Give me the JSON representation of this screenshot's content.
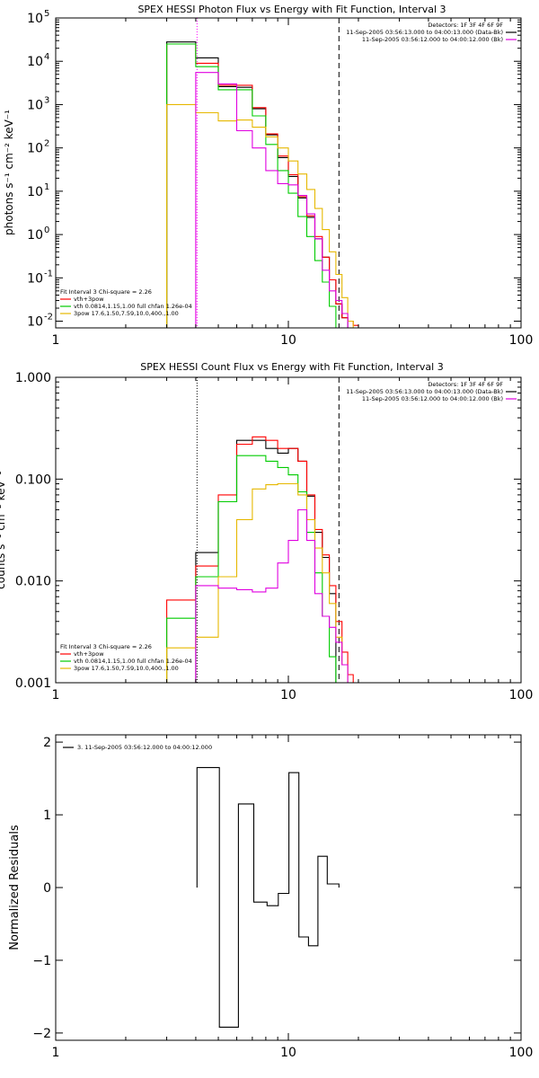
{
  "chart_data": [
    {
      "type": "line",
      "title": "SPEX HESSI Photon Flux vs Energy with Fit Function, Interval 3",
      "ylabel": "photons s⁻¹ cm⁻² keV⁻¹",
      "xlabel": "",
      "x_scale": "log",
      "y_scale": "log",
      "xlim": [
        1,
        100
      ],
      "ylim": [
        0.007,
        100000
      ],
      "x_ticks": [
        {
          "v": 1,
          "label": "1"
        },
        {
          "v": 10,
          "label": "10"
        },
        {
          "v": 100,
          "label": "100"
        }
      ],
      "y_ticks": [
        {
          "v": 0.01,
          "base": "10",
          "exp": "-2"
        },
        {
          "v": 0.1,
          "base": "10",
          "exp": "-1"
        },
        {
          "v": 1,
          "base": "10",
          "exp": "0"
        },
        {
          "v": 10,
          "base": "10",
          "exp": "1"
        },
        {
          "v": 100,
          "base": "10",
          "exp": "2"
        },
        {
          "v": 1000,
          "base": "10",
          "exp": "3"
        },
        {
          "v": 10000,
          "base": "10",
          "exp": "4"
        },
        {
          "v": 100000,
          "base": "10",
          "exp": "5"
        }
      ],
      "vlines": [
        {
          "x": 4.05,
          "style": "dotted",
          "color": "#ff00ff"
        },
        {
          "x": 16.5,
          "style": "dashed",
          "color": "#000000"
        }
      ],
      "info_lines": [
        "Detectors: 1F 3F 4F 6F 9F",
        "11-Sep-2005 03:56:13.000 to 04:00:13.000 (Data-Bk)",
        "11-Sep-2005 03:56:12.000 to 04:00:12.000 (Bk)"
      ],
      "fit_lines": [
        "Fit Interval 3   Chi-square = 2.26",
        "vth+3pow",
        "vth 0.0814,1.15,1.00  full chfan 1.26e-04",
        "3pow 17.6,1.50,7.59,10.0,400.,1.00"
      ],
      "edges": [
        3,
        4,
        5,
        6,
        7,
        8,
        9,
        10,
        11,
        12,
        13,
        14,
        15,
        16,
        17,
        18,
        19,
        20
      ],
      "series": [
        {
          "name": "Data-Bk",
          "color": "#000000",
          "values": [
            28000,
            12000,
            2600,
            2500,
            800,
            200,
            60,
            22,
            7,
            2.5,
            0.8,
            0.3,
            0.09,
            0.025,
            0.012,
            null,
            null
          ]
        },
        {
          "name": "vth+3pow",
          "color": "#ff0000",
          "values": [
            25000,
            9000,
            2800,
            2800,
            850,
            210,
            65,
            24,
            7.5,
            2.7,
            0.9,
            0.3,
            0.09,
            0.025,
            0.012,
            0.01,
            0.008
          ]
        },
        {
          "name": "vth",
          "color": "#00cc00",
          "values": [
            25000,
            7500,
            2200,
            2200,
            550,
            120,
            30,
            9,
            2.6,
            0.9,
            0.25,
            0.08,
            0.022,
            null,
            null,
            null,
            null
          ]
        },
        {
          "name": "3pow",
          "color": "#e6b800",
          "values": [
            1000,
            650,
            420,
            440,
            300,
            180,
            100,
            50,
            25,
            11,
            4,
            1.3,
            0.4,
            0.12,
            0.035,
            0.01,
            null
          ]
        },
        {
          "name": "Bk",
          "color": "#e000e0",
          "values": [
            null,
            5500,
            3000,
            250,
            100,
            30,
            15,
            14,
            8,
            3,
            0.8,
            0.15,
            0.05,
            0.03,
            0.015,
            null,
            null
          ]
        }
      ]
    },
    {
      "type": "line",
      "title": "SPEX HESSI Count Flux vs Energy with Fit Function, Interval 3",
      "ylabel": "counts s⁻¹ cm⁻² keV⁻¹",
      "xlabel": "",
      "x_scale": "log",
      "y_scale": "log",
      "xlim": [
        1,
        100
      ],
      "ylim": [
        0.001,
        1.0
      ],
      "x_ticks": [
        {
          "v": 1,
          "label": "1"
        },
        {
          "v": 10,
          "label": "10"
        },
        {
          "v": 100,
          "label": "100"
        }
      ],
      "y_ticks": [
        {
          "v": 0.001,
          "label": "0.001"
        },
        {
          "v": 0.01,
          "label": "0.010"
        },
        {
          "v": 0.1,
          "label": "0.100"
        },
        {
          "v": 1,
          "label": "1.000"
        }
      ],
      "vlines": [
        {
          "x": 4.05,
          "style": "dotted",
          "color": "#000000"
        },
        {
          "x": 16.5,
          "style": "dashed",
          "color": "#000000"
        }
      ],
      "info_lines": [
        "Detectors: 1F 3F 4F 6F 9F",
        "11-Sep-2005 03:56:13.000 to 04:00:13.000 (Data-Bk)",
        "11-Sep-2005 03:56:12.000 to 04:00:12.000 (Bk)"
      ],
      "fit_lines": [
        "Fit Interval 3   Chi-square = 2.26",
        "vth+3pow",
        "vth 0.0814,1.15,1.00  full chfan 1.26e-04",
        "3pow 17.6,1.50,7.59,10.0,400.,1.00"
      ],
      "edges": [
        3,
        4,
        5,
        6,
        7,
        8,
        9,
        10,
        11,
        12,
        13,
        14,
        15,
        16,
        17,
        18,
        19,
        20
      ],
      "series": [
        {
          "name": "Data-Bk",
          "color": "#000000",
          "values": [
            null,
            0.019,
            0.06,
            0.24,
            0.24,
            0.2,
            0.18,
            0.2,
            0.15,
            0.068,
            0.03,
            0.017,
            0.0075,
            null,
            null,
            null,
            null
          ]
        },
        {
          "name": "vth+3pow",
          "color": "#ff0000",
          "values": [
            0.0065,
            0.014,
            0.07,
            0.22,
            0.26,
            0.24,
            0.2,
            0.2,
            0.15,
            0.07,
            0.032,
            0.018,
            0.009,
            0.004,
            0.002,
            0.0012,
            0.001
          ]
        },
        {
          "name": "vth",
          "color": "#00cc00",
          "values": [
            0.0043,
            0.011,
            0.06,
            0.17,
            0.17,
            0.15,
            0.13,
            0.11,
            0.075,
            0.03,
            0.012,
            0.0045,
            0.0018,
            0.001,
            null,
            null,
            null
          ]
        },
        {
          "name": "3pow",
          "color": "#e6b800",
          "values": [
            0.0022,
            0.0028,
            0.011,
            0.04,
            0.08,
            0.088,
            0.09,
            0.09,
            0.07,
            0.04,
            0.021,
            0.012,
            0.006,
            0.0028,
            0.0015,
            0.001,
            null
          ]
        },
        {
          "name": "Bk",
          "color": "#e000e0",
          "values": [
            null,
            0.009,
            0.0085,
            0.0082,
            0.0078,
            0.0085,
            0.015,
            0.025,
            0.05,
            0.025,
            0.0075,
            0.0045,
            0.0035,
            0.0025,
            0.0015,
            null,
            null
          ]
        }
      ]
    },
    {
      "type": "line",
      "title": "",
      "ylabel": "Normalized Residuals",
      "xlabel": "",
      "x_scale": "log",
      "y_scale": "linear",
      "xlim": [
        1,
        100
      ],
      "ylim": [
        -2.1,
        2.1
      ],
      "x_ticks": [
        {
          "v": 1,
          "label": "1"
        },
        {
          "v": 10,
          "label": "10"
        },
        {
          "v": 100,
          "label": "100"
        }
      ],
      "y_ticks": [
        {
          "v": -2,
          "label": "−2"
        },
        {
          "v": -1,
          "label": "−1"
        },
        {
          "v": 0,
          "label": "0"
        },
        {
          "v": 1,
          "label": "1"
        },
        {
          "v": 2,
          "label": "2"
        }
      ],
      "legend_entry": "3. 11-Sep-2005 03:56:12.000 to 04:00:12.000",
      "edges": [
        4.05,
        5.05,
        6.1,
        7.1,
        8.1,
        9.05,
        10.05,
        11.1,
        12.2,
        13.4,
        14.7,
        16.5
      ],
      "series": [
        {
          "name": "3. 11-Sep-2005 03:56:12.000 to 04:00:12.000",
          "color": "#000000",
          "values": [
            1.65,
            -1.92,
            1.15,
            -0.2,
            -0.25,
            -0.08,
            1.58,
            -0.68,
            -0.8,
            0.43,
            0.05
          ]
        }
      ]
    }
  ]
}
